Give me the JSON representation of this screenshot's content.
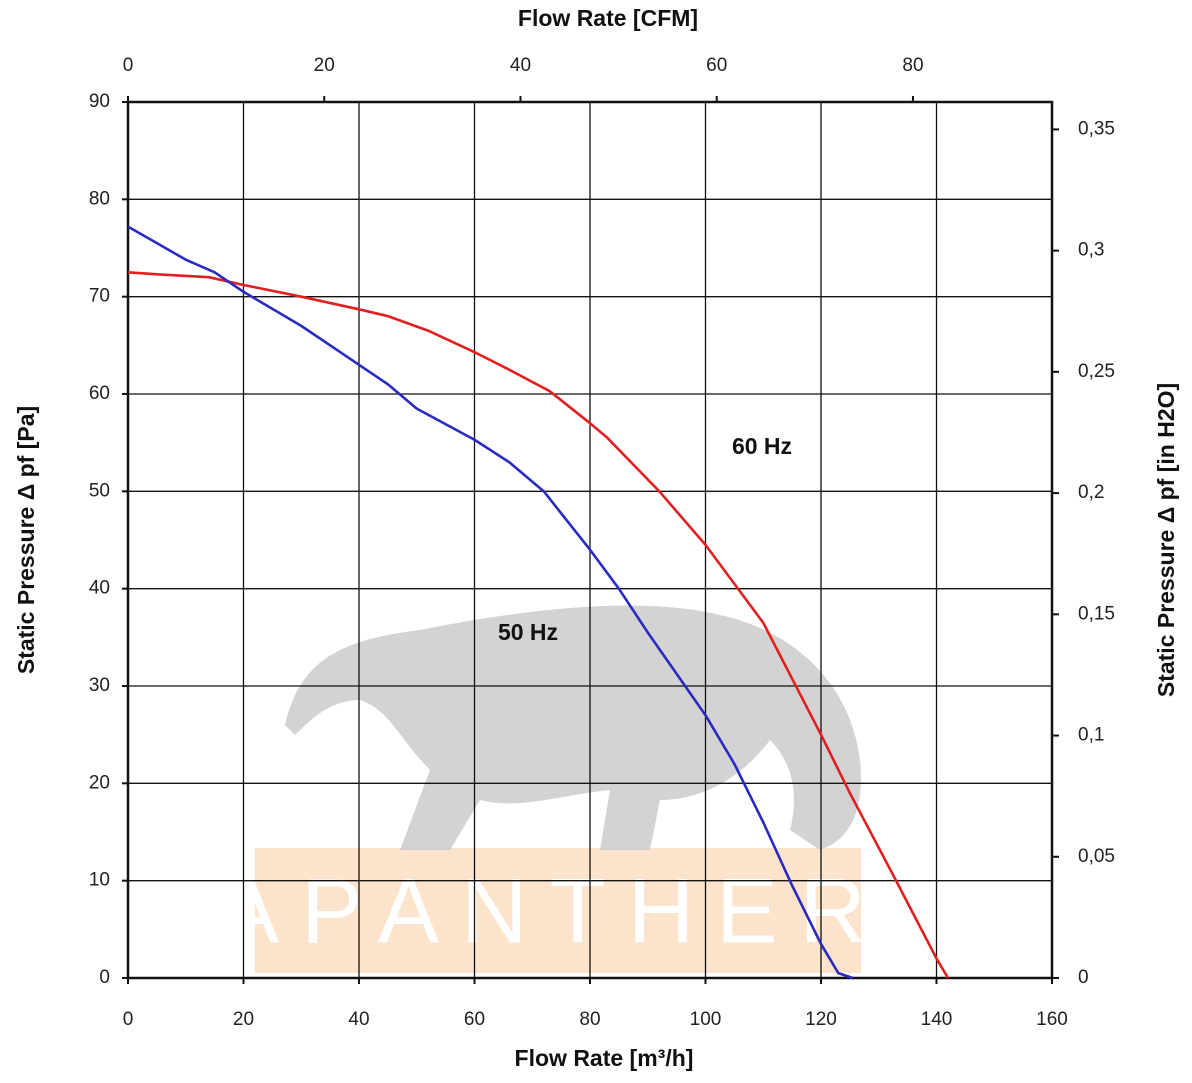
{
  "chart_data": {
    "type": "line",
    "xlabel": "Flow Rate [m³/h]",
    "x2label": "Flow Rate [CFM]",
    "ylabel": "Static Pressure Δ pf [Pa]",
    "y2label": "Static Pressure Δ pf [in H2O]",
    "xlim": [
      0,
      160
    ],
    "xticks": [
      0,
      20,
      40,
      60,
      80,
      100,
      120,
      140,
      160
    ],
    "x2lim": [
      0,
      94.17
    ],
    "x2ticks": [
      0,
      20,
      40,
      60,
      80
    ],
    "ylim": [
      0,
      90
    ],
    "yticks": [
      0,
      10,
      20,
      30,
      40,
      50,
      60,
      70,
      80,
      90
    ],
    "y2lim": [
      0,
      0.3613
    ],
    "y2ticks": [
      0,
      {
        "value": 0.05,
        "label": "0,05"
      },
      {
        "value": 0.1,
        "label": "0,1"
      },
      {
        "value": 0.15,
        "label": "0,15"
      },
      {
        "value": 0.2,
        "label": "0,2"
      },
      {
        "value": 0.25,
        "label": "0,25"
      },
      {
        "value": 0.3,
        "label": "0,3"
      },
      {
        "value": 0.35,
        "label": "0,35"
      }
    ],
    "grid": true,
    "series": [
      {
        "color": "#e02020",
        "x": [
          0,
          5,
          14,
          20,
          30,
          40,
          45,
          52,
          60,
          66,
          73,
          80,
          83,
          92,
          100,
          110,
          120,
          125,
          133,
          140,
          142
        ],
        "values": [
          72.5,
          72.3,
          72,
          71.2,
          70,
          68.7,
          68,
          66.5,
          64.3,
          62.5,
          60.3,
          57,
          55.5,
          50,
          44.5,
          36.5,
          25,
          19,
          10,
          2,
          0
        ]
      },
      {
        "color": "#2a2ac0",
        "x": [
          0,
          5,
          10,
          15,
          20,
          30,
          35,
          40,
          45,
          50,
          60,
          66,
          72,
          76,
          80,
          85,
          90,
          100,
          105,
          110,
          115,
          120,
          123,
          125.5
        ],
        "values": [
          77.2,
          75.5,
          73.8,
          72.5,
          70.5,
          67,
          65,
          63,
          61,
          58.5,
          55.3,
          53,
          50,
          47,
          44,
          40,
          35.5,
          27,
          22,
          16,
          9.5,
          3.5,
          0.5,
          0
        ]
      }
    ],
    "annotations": [
      "60 Hz",
      "50 Hz"
    ],
    "watermark": "LAPANTHERA"
  }
}
